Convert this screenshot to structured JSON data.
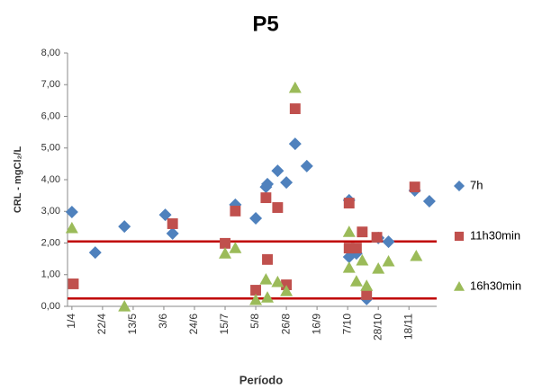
{
  "chart_data": {
    "type": "scatter",
    "title": "P5",
    "x_label": "Período",
    "y_label": "CRL - mgCl₂/L",
    "xlim": [
      -3,
      250
    ],
    "xticks": [
      {
        "value": 0,
        "label": "1/4"
      },
      {
        "value": 21,
        "label": "22/4"
      },
      {
        "value": 42,
        "label": "13/5"
      },
      {
        "value": 63,
        "label": "3/6"
      },
      {
        "value": 84,
        "label": "24/6"
      },
      {
        "value": 105,
        "label": "15/7"
      },
      {
        "value": 126,
        "label": "5/8"
      },
      {
        "value": 147,
        "label": "26/8"
      },
      {
        "value": 168,
        "label": "16/9"
      },
      {
        "value": 189,
        "label": "7/10"
      },
      {
        "value": 210,
        "label": "28/10"
      },
      {
        "value": 231,
        "label": "18/11"
      }
    ],
    "ylim": [
      0,
      8
    ],
    "yticks": [
      {
        "value": 0,
        "label": "0,00"
      },
      {
        "value": 1,
        "label": "1,00"
      },
      {
        "value": 2,
        "label": "2,00"
      },
      {
        "value": 3,
        "label": "3,00"
      },
      {
        "value": 4,
        "label": "4,00"
      },
      {
        "value": 5,
        "label": "5,00"
      },
      {
        "value": 6,
        "label": "6,00"
      },
      {
        "value": 7,
        "label": "7,00"
      },
      {
        "value": 8,
        "label": "8,00"
      }
    ],
    "reference_lines": {
      "color": "#c00000",
      "values": [
        2.05,
        0.25
      ]
    },
    "legend": "right",
    "series": [
      {
        "name": "7h",
        "color": "#4f81bd",
        "marker": "diamond",
        "x": [
          0,
          16,
          36,
          64,
          69,
          112,
          126,
          133,
          134,
          141,
          147,
          153,
          161,
          190,
          190,
          195,
          202,
          210,
          217,
          235,
          245
        ],
        "values": [
          2.98,
          1.7,
          2.52,
          2.89,
          2.3,
          3.21,
          2.78,
          3.77,
          3.86,
          4.28,
          3.91,
          5.13,
          4.43,
          3.35,
          1.56,
          1.67,
          0.23,
          2.16,
          2.04,
          3.66,
          3.32
        ]
      },
      {
        "name": "11h30min",
        "color": "#c0504d",
        "marker": "square",
        "x": [
          1,
          69,
          105,
          112,
          126,
          133,
          134,
          141,
          147,
          153,
          190,
          199,
          190,
          195,
          202,
          209,
          235
        ],
        "values": [
          0.71,
          2.61,
          1.99,
          3.01,
          0.51,
          3.43,
          1.48,
          3.12,
          0.68,
          6.24,
          3.26,
          2.35,
          1.84,
          1.84,
          0.37,
          2.18,
          3.77
        ]
      },
      {
        "name": "16h30min",
        "color": "#9bbb59",
        "marker": "triangle",
        "x": [
          0,
          36,
          105,
          112,
          126,
          133,
          134,
          141,
          147,
          153,
          190,
          199,
          190,
          195,
          202,
          210,
          217,
          236
        ],
        "values": [
          2.47,
          0,
          1.67,
          1.84,
          0.2,
          0.85,
          0.28,
          0.77,
          0.48,
          6.9,
          2.35,
          1.45,
          1.22,
          0.79,
          0.65,
          1.19,
          1.42,
          1.59
        ]
      }
    ]
  }
}
